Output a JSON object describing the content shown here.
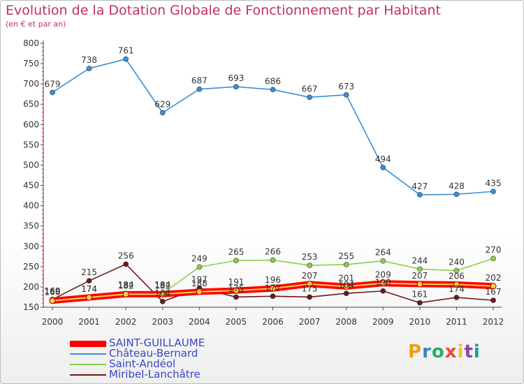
{
  "title": "Evolution de la Dotation Globale de Fonctionnement par Habitant",
  "subtitle": "(en € et par an)",
  "logo": {
    "text": "Proxiti",
    "colors": [
      "#f39c12",
      "#2e86c1",
      "#27ae60",
      "#e74c3c",
      "#f1c40f",
      "#8e44ad",
      "#16a085"
    ]
  },
  "chart_data": {
    "type": "line",
    "x": [
      "2000",
      "2001",
      "2002",
      "2003",
      "2004",
      "2005",
      "2006",
      "2007",
      "2008",
      "2009",
      "2010",
      "2011",
      "2012"
    ],
    "ylim": [
      150,
      800
    ],
    "yticks": [
      150,
      200,
      250,
      300,
      350,
      400,
      450,
      500,
      550,
      600,
      650,
      700,
      750,
      800
    ],
    "grid": false,
    "legend_position": "bottom-left",
    "series": [
      {
        "name": "SAINT-GUILLAUME",
        "color": "#ff0000",
        "values": [
          166,
          174,
          182,
          182,
          188,
          191,
          196,
          207,
          201,
          209,
          207,
          206,
          202
        ]
      },
      {
        "name": "Château-Bernard",
        "color": "#3a8fd6",
        "values": [
          679,
          738,
          761,
          629,
          687,
          693,
          686,
          667,
          673,
          494,
          427,
          428,
          435
        ]
      },
      {
        "name": "Saint-Andéol",
        "color": "#8ccf4a",
        "values": [
          169,
          174,
          184,
          184,
          249,
          265,
          266,
          253,
          255,
          264,
          244,
          240,
          270
        ]
      },
      {
        "name": "Miribel-Lanchâtre",
        "color": "#6e1a1a",
        "values": [
          169,
          215,
          256,
          164,
          197,
          175,
          177,
          175,
          184,
          190,
          161,
          174,
          167
        ]
      }
    ]
  }
}
